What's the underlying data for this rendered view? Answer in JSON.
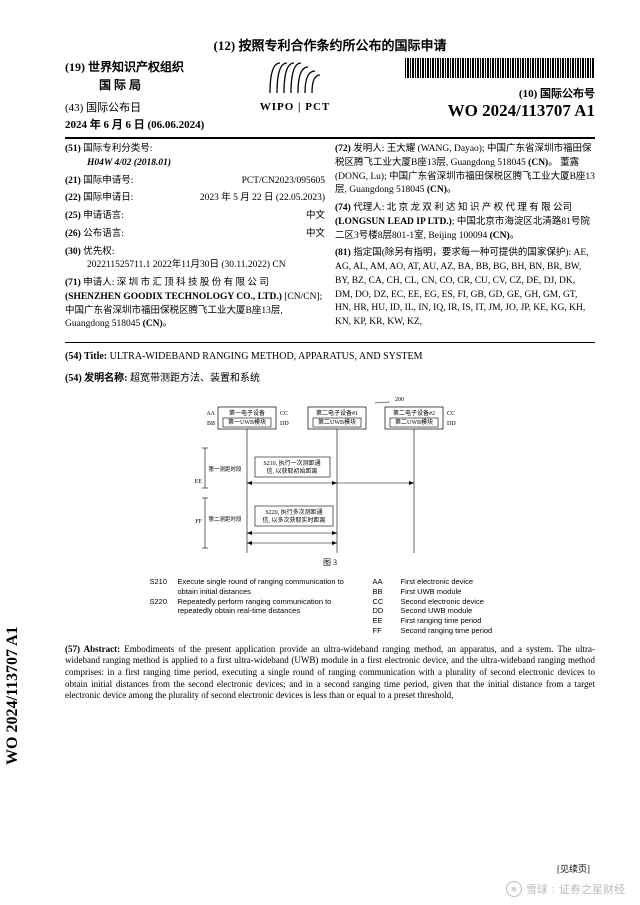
{
  "header": {
    "line12": "(12) 按照专利合作条约所公布的国际申请",
    "line19a": "(19) 世界知识产权组织",
    "line19b": "国 际 局",
    "line43a": "(43) 国际公布日",
    "line43b": "2024 年 6 月 6 日 (06.06.2024)",
    "wipo": "WIPO | PCT",
    "pubnoLabel": "(10) 国际公布号",
    "pubno": "WO 2024/113707 A1"
  },
  "bibLeft": [
    {
      "tag": "(51)",
      "name": "国际专利分类号:",
      "val": "",
      "sub": "H04W 4/02 (2018.01)",
      "subItalic": true
    },
    {
      "tag": "(21)",
      "name": "国际申请号:",
      "val": "PCT/CN2023/095605"
    },
    {
      "tag": "(22)",
      "name": "国际申请日:",
      "val": "2023 年 5 月 22 日 (22.05.2023)"
    },
    {
      "tag": "(25)",
      "name": "申请语言:",
      "val": "中文"
    },
    {
      "tag": "(26)",
      "name": "公布语言:",
      "val": "中文"
    },
    {
      "tag": "(30)",
      "name": "优先权:",
      "val": "",
      "sub": "202211525711.1        2022年11月30日 (30.11.2022)  CN"
    },
    {
      "tag": "(71)",
      "name": "申请人:",
      "body": "深 圳 市 汇 顶 科 技 股 份 有 限 公 司 (SHENZHEN GOODIX TECHNOLOGY CO., LTD.) [CN/CN]; 中国广东省深圳市福田保税区腾飞工业大厦B座13层, Guangdong 518045 (CN)。"
    }
  ],
  "bibRight": [
    {
      "tag": "(72)",
      "name": "发明人:",
      "body": "王大耀 (WANG, Dayao); 中国广东省深圳市福田保税区腾飞工业大厦B座13层, Guangdong 518045 (CN)。 董露 (DONG, Lu); 中国广东省深圳市福田保税区腾飞工业大厦B座13层, Guangdong 518045 (CN)。"
    },
    {
      "tag": "(74)",
      "name": "代理人:",
      "body": "北 京 龙 双 利 达 知 识 产 权 代 理 有 限 公司 (LONGSUN LEAD IP LTD.); 中国北京市海淀区北清路81号院二区3号楼8层801-1室, Beijing 100094 (CN)。"
    },
    {
      "tag": "(81)",
      "name": "指定国(除另有指明，要求每一种可提供的国家保护):",
      "body": "AE, AG, AL, AM, AO, AT, AU, AZ, BA, BB, BG, BH, BN, BR, BW, BY, BZ, CA, CH, CL, CN, CO, CR, CU, CV, CZ, DE, DJ, DK, DM, DO, DZ, EC, EE, EG, ES, FI, GB, GD, GE, GH, GM, GT, HN, HR, HU, ID, IL, IN, IQ, IR, IS, IT, JM, JO, JP, KE, KG, KH, KN, KP, KR, KW, KZ,"
    }
  ],
  "title": {
    "label54en": "(54) Title:",
    "titleEn": "ULTRA-WIDEBAND RANGING METHOD, APPARATUS, AND SYSTEM",
    "label54cn": "(54) 发明名称:",
    "titleCn": "超宽带测距方法、装置和系统"
  },
  "figure": {
    "sysNum": "200",
    "boxes": {
      "aa": "第一电子设备",
      "bb": "第一UWB模块",
      "cc1": "第二电子设备#1",
      "dd1": "第二UWB模块",
      "cc2": "第二电子设备#2",
      "dd2": "第二UWB模块"
    },
    "labels": {
      "AA": "AA",
      "BB": "BB",
      "CC": "CC",
      "DD": "DD",
      "EE": "EE",
      "FF": "FF"
    },
    "s210a": "S210, 执行一次测距通",
    "s210b": "信, 以获取初始距离",
    "ee": "第一测距时段",
    "s220a": "S220, 执行多次测距通",
    "s220b": "信, 以多次获取实时距离",
    "ff": "第二测距时段",
    "caption": "图 3"
  },
  "legendLeft": [
    {
      "k": "S210",
      "v": "Execute single round of ranging communication to obtain initial distances"
    },
    {
      "k": "S220",
      "v": "Repeatedly perform ranging communication to repeatedly obtain real-time distances"
    }
  ],
  "legendRight": [
    {
      "k": "AA",
      "v": "First electronic device"
    },
    {
      "k": "BB",
      "v": "First UWB module"
    },
    {
      "k": "CC",
      "v": "Second electronic device"
    },
    {
      "k": "DD",
      "v": "Second UWB module"
    },
    {
      "k": "EE",
      "v": "First ranging time period"
    },
    {
      "k": "FF",
      "v": "Second ranging time period"
    }
  ],
  "abstract": {
    "label": "(57) Abstract:",
    "text": "Embodiments of the present application provide an ultra-wideband ranging method, an apparatus, and a system. The ultra-wideband ranging method is applied to a first ultra-wideband (UWB) module in a first electronic device, and the ultra-wideband ranging method comprises: in a first ranging time period, executing a single round of ranging communication with a plurality of second electronic devices to obtain initial distances from the second electronic devices; and in a second ranging time period, given that the initial distance from a target electronic device among the plurality of second electronic devices is less than or equal to a preset threshold,"
  },
  "cont": "[见续页]",
  "verticalPubno": "WO 2024/113707 A1",
  "watermark": {
    "src": "雪球",
    "author": "证券之星财经"
  }
}
